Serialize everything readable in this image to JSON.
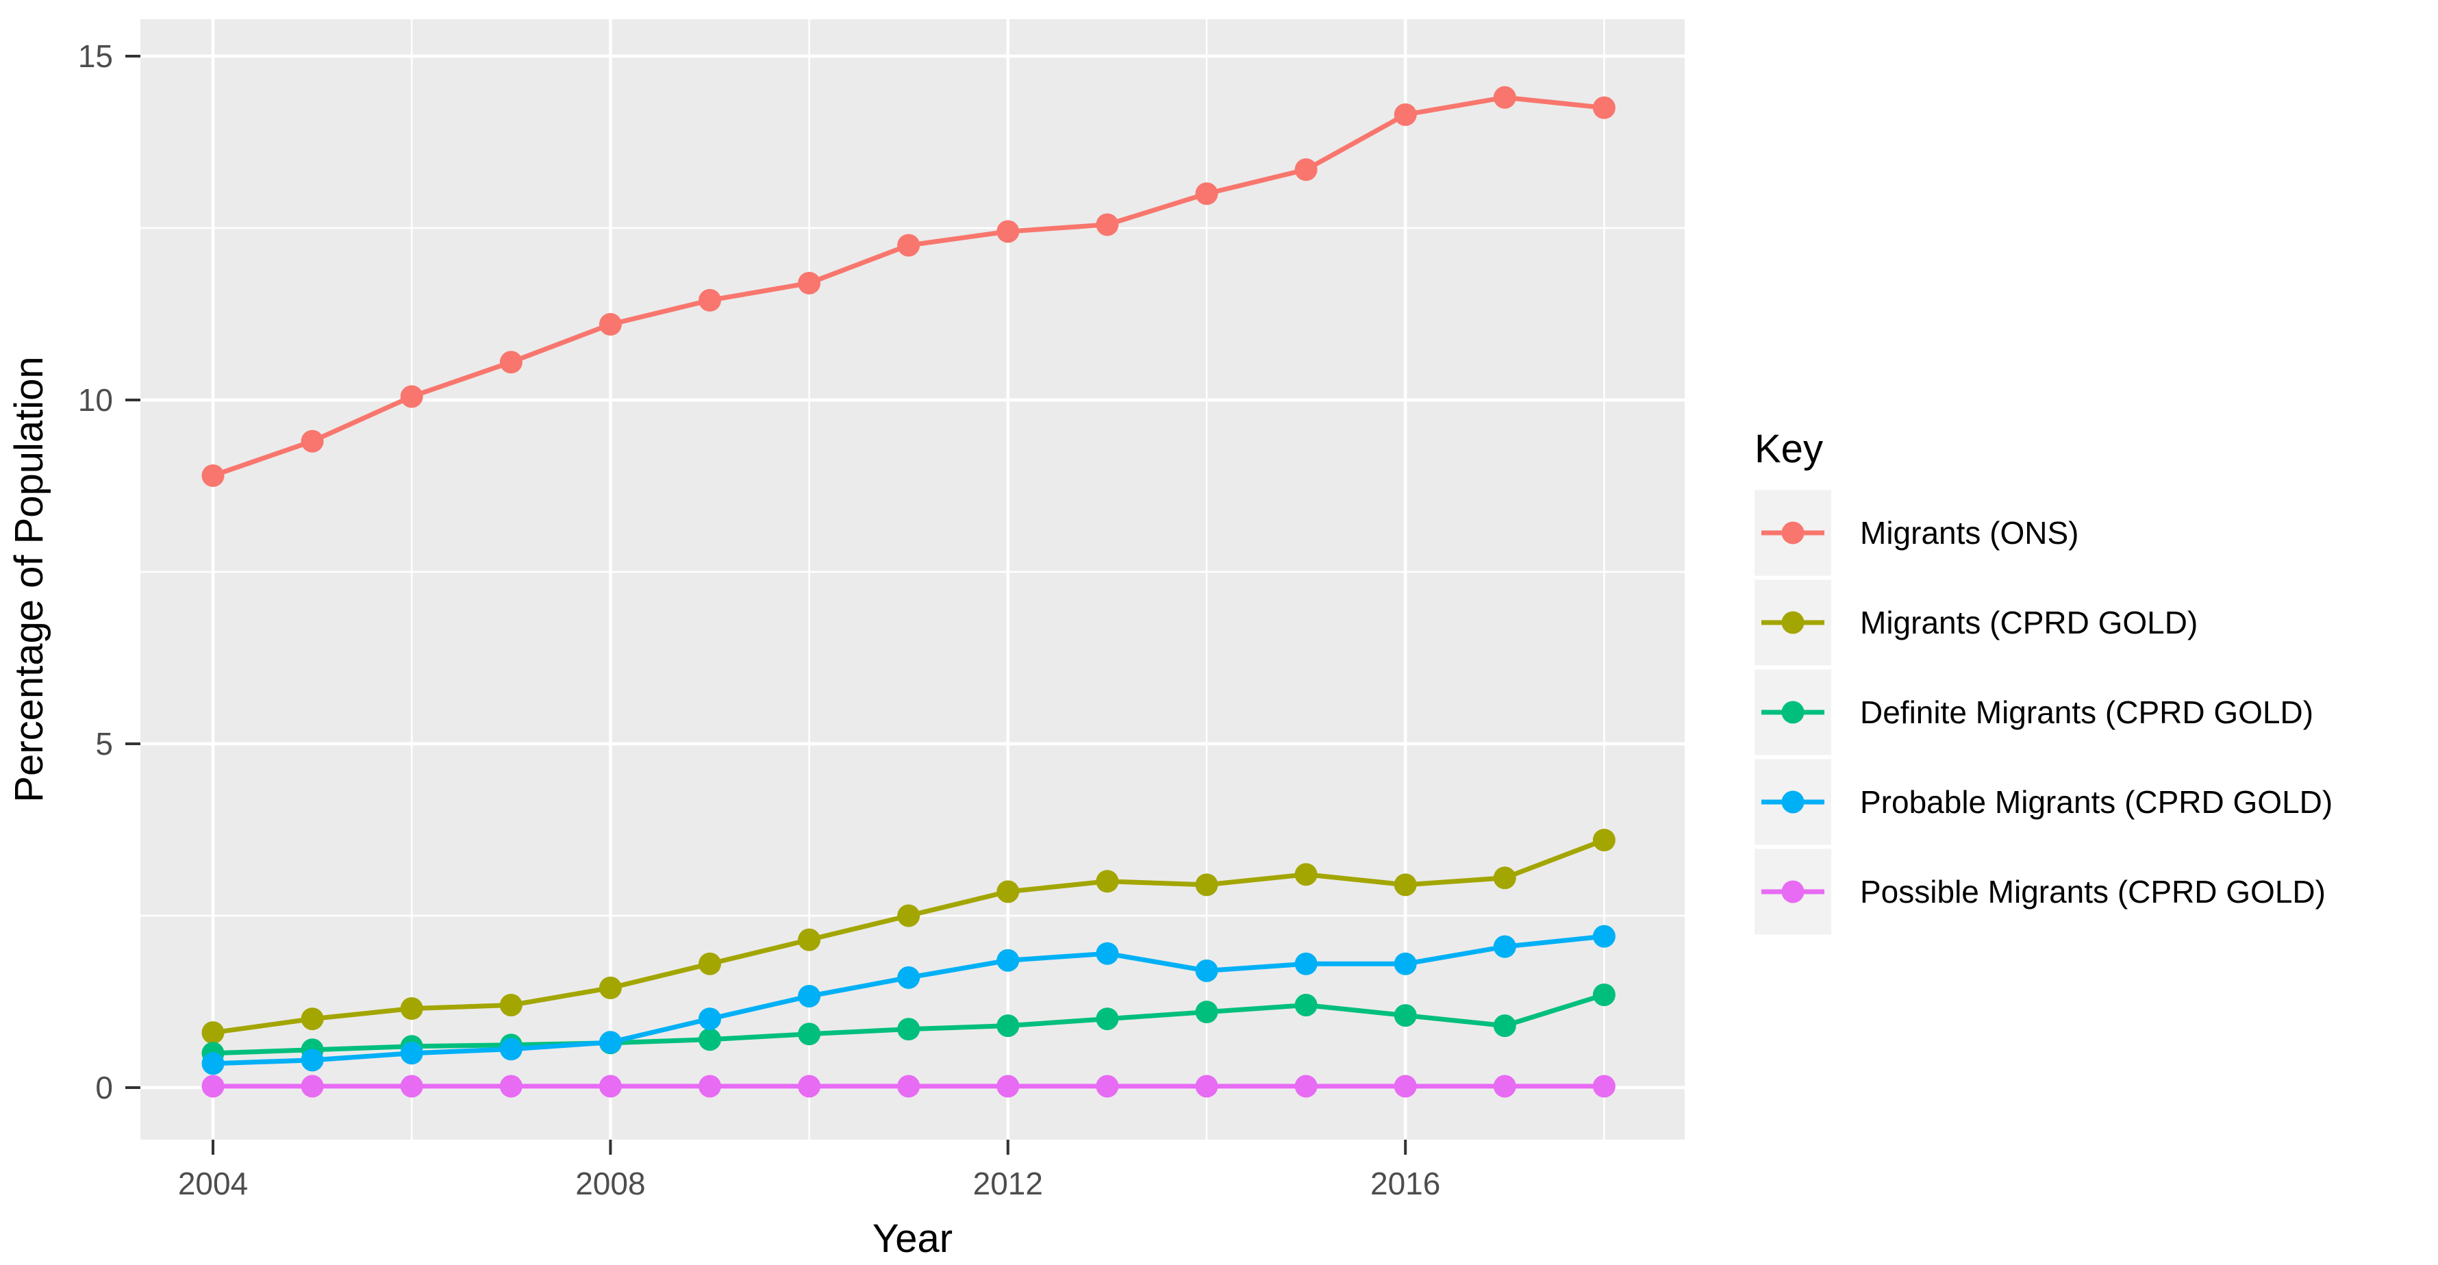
{
  "chart_data": {
    "type": "line",
    "x": [
      2004,
      2005,
      2006,
      2007,
      2008,
      2009,
      2010,
      2011,
      2012,
      2013,
      2014,
      2015,
      2016,
      2017,
      2018
    ],
    "series": [
      {
        "name": "Migrants (ONS)",
        "color": "#F8766D",
        "values": [
          8.9,
          9.4,
          10.05,
          10.55,
          11.1,
          11.45,
          11.7,
          12.25,
          12.45,
          12.55,
          13.0,
          13.35,
          14.15,
          14.4,
          14.25
        ]
      },
      {
        "name": "Migrants (CPRD GOLD)",
        "color": "#A3A500",
        "values": [
          0.8,
          1.0,
          1.15,
          1.2,
          1.45,
          1.8,
          2.15,
          2.5,
          2.85,
          3.0,
          2.95,
          3.1,
          2.95,
          3.05,
          3.6
        ]
      },
      {
        "name": "Definite Migrants (CPRD GOLD)",
        "color": "#00BF7D",
        "values": [
          0.5,
          0.55,
          0.6,
          0.62,
          0.65,
          0.7,
          0.78,
          0.85,
          0.9,
          1.0,
          1.1,
          1.2,
          1.05,
          0.9,
          1.35
        ]
      },
      {
        "name": "Probable Migrants (CPRD GOLD)",
        "color": "#00B0F6",
        "values": [
          0.35,
          0.4,
          0.5,
          0.56,
          0.66,
          1.0,
          1.33,
          1.6,
          1.85,
          1.95,
          1.7,
          1.8,
          1.8,
          2.05,
          2.2
        ]
      },
      {
        "name": "Possible Migrants (CPRD GOLD)",
        "color": "#E76BF3",
        "values": [
          0.02,
          0.02,
          0.02,
          0.02,
          0.02,
          0.02,
          0.02,
          0.02,
          0.02,
          0.02,
          0.02,
          0.02,
          0.02,
          0.02,
          0.02
        ]
      }
    ],
    "title": "",
    "xlabel": "Year",
    "ylabel": "Percentage of Population",
    "legend_title": "Key",
    "legend_position": "right",
    "x_ticks": [
      2004,
      2008,
      2012,
      2016
    ],
    "x_minor": [
      2006,
      2010,
      2014,
      2018
    ],
    "y_ticks": [
      0,
      5,
      10,
      15
    ],
    "y_minor": [
      2.5,
      7.5,
      12.5
    ],
    "ylim": [
      0,
      15
    ],
    "grid": true,
    "colors": {
      "panel_background": "#EBEBEB",
      "grid": "#FFFFFF",
      "tick_mark": "#333333",
      "tick_label": "#4D4D4D",
      "axis_title": "#000000",
      "legend_key_background": "#F2F2F2",
      "legend_text": "#000000"
    }
  }
}
